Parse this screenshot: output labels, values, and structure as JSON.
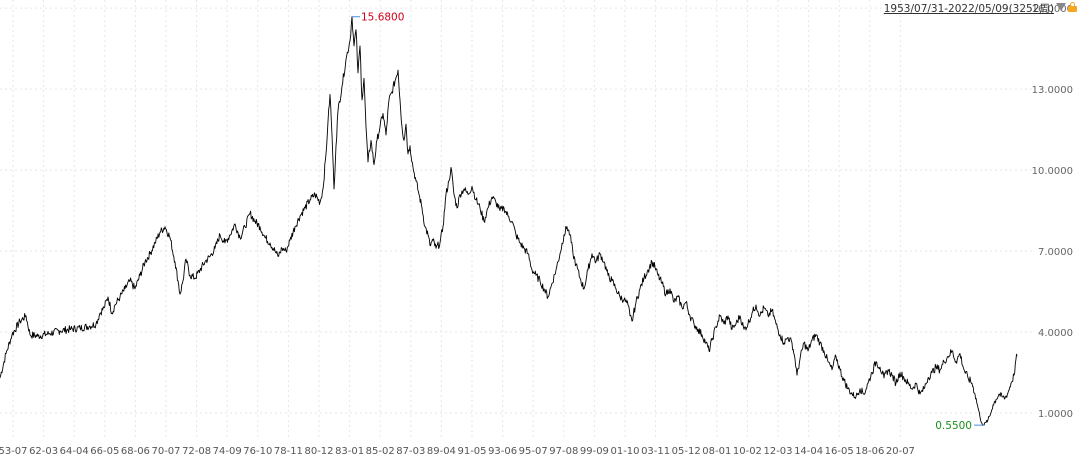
{
  "range_selector": {
    "label": "1953/07/31-2022/05/09(3252周)",
    "caret_icon": "caret-down-icon",
    "lock_icon": "lock-icon"
  },
  "colors": {
    "line": "#000000",
    "max_label": "#d0021b",
    "min_label": "#1a8f1a",
    "grid": "#e6e6e6"
  },
  "chart_data": {
    "type": "line",
    "title": "",
    "xlabel": "",
    "ylabel": "",
    "ylim": [
      0.0,
      16.3
    ],
    "y_ticks": [
      "1.0000",
      "4.0000",
      "7.0000",
      "10.0000",
      "13.0000",
      "16.0000"
    ],
    "x_ticks": [
      "53-07",
      "62-03",
      "64-04",
      "66-05",
      "68-06",
      "70-07",
      "72-08",
      "74-09",
      "76-10",
      "78-11",
      "80-12",
      "83-01",
      "85-02",
      "87-03",
      "89-04",
      "91-05",
      "93-06",
      "95-07",
      "97-08",
      "99-09",
      "01-10",
      "03-11",
      "05-12",
      "08-01",
      "10-02",
      "12-03",
      "14-04",
      "16-05",
      "18-06",
      "20-07"
    ],
    "grid": true,
    "annotations": {
      "max": "15.6800",
      "min": "0.5500"
    },
    "series": [
      {
        "values": [
          [
            0,
            2.3
          ],
          [
            6,
            3.2
          ],
          [
            12,
            3.9
          ],
          [
            20,
            4.4
          ],
          [
            26,
            4.6
          ],
          [
            30,
            3.9
          ],
          [
            38,
            3.85
          ],
          [
            50,
            3.95
          ],
          [
            60,
            4.05
          ],
          [
            70,
            4.1
          ],
          [
            80,
            4.15
          ],
          [
            90,
            4.22
          ],
          [
            96,
            4.3
          ],
          [
            100,
            4.7
          ],
          [
            104,
            4.9
          ],
          [
            108,
            5.3
          ],
          [
            112,
            4.7
          ],
          [
            115,
            5.0
          ],
          [
            120,
            5.3
          ],
          [
            125,
            5.6
          ],
          [
            130,
            5.9
          ],
          [
            135,
            5.6
          ],
          [
            140,
            6.1
          ],
          [
            145,
            6.6
          ],
          [
            150,
            6.9
          ],
          [
            155,
            7.3
          ],
          [
            160,
            7.7
          ],
          [
            165,
            7.9
          ],
          [
            170,
            7.5
          ],
          [
            175,
            6.6
          ],
          [
            178,
            5.9
          ],
          [
            180,
            5.4
          ],
          [
            183,
            5.9
          ],
          [
            186,
            6.7
          ],
          [
            190,
            6.1
          ],
          [
            195,
            6.0
          ],
          [
            200,
            6.3
          ],
          [
            205,
            6.6
          ],
          [
            210,
            6.8
          ],
          [
            215,
            7.1
          ],
          [
            220,
            7.6
          ],
          [
            225,
            7.3
          ],
          [
            230,
            7.6
          ],
          [
            235,
            8.0
          ],
          [
            240,
            7.5
          ],
          [
            245,
            7.9
          ],
          [
            250,
            8.4
          ],
          [
            255,
            8.1
          ],
          [
            260,
            7.9
          ],
          [
            265,
            7.5
          ],
          [
            270,
            7.3
          ],
          [
            275,
            7.0
          ],
          [
            278,
            6.8
          ],
          [
            282,
            7.1
          ],
          [
            286,
            7.0
          ],
          [
            290,
            7.4
          ],
          [
            295,
            7.9
          ],
          [
            300,
            8.3
          ],
          [
            305,
            8.6
          ],
          [
            310,
            8.9
          ],
          [
            315,
            9.1
          ],
          [
            320,
            8.8
          ],
          [
            323,
            9.3
          ],
          [
            326,
            10.6
          ],
          [
            328,
            11.8
          ],
          [
            330,
            12.8
          ],
          [
            332,
            11.3
          ],
          [
            334,
            9.3
          ],
          [
            336,
            10.9
          ],
          [
            338,
            12.2
          ],
          [
            342,
            13.1
          ],
          [
            346,
            14.1
          ],
          [
            350,
            14.8
          ],
          [
            352,
            15.68
          ],
          [
            354,
            14.6
          ],
          [
            356,
            15.2
          ],
          [
            358,
            13.6
          ],
          [
            360,
            14.6
          ],
          [
            362,
            12.6
          ],
          [
            364,
            13.4
          ],
          [
            366,
            11.6
          ],
          [
            368,
            10.3
          ],
          [
            371,
            11.1
          ],
          [
            374,
            10.2
          ],
          [
            377,
            11.1
          ],
          [
            380,
            11.6
          ],
          [
            383,
            12.1
          ],
          [
            386,
            11.3
          ],
          [
            389,
            12.6
          ],
          [
            392,
            12.9
          ],
          [
            395,
            13.3
          ],
          [
            398,
            13.7
          ],
          [
            400,
            12.6
          ],
          [
            402,
            11.6
          ],
          [
            404,
            11.1
          ],
          [
            406,
            11.7
          ],
          [
            408,
            10.6
          ],
          [
            410,
            10.9
          ],
          [
            413,
            10.1
          ],
          [
            416,
            9.6
          ],
          [
            419,
            9.1
          ],
          [
            422,
            8.6
          ],
          [
            425,
            7.9
          ],
          [
            428,
            7.6
          ],
          [
            430,
            7.2
          ],
          [
            433,
            7.4
          ],
          [
            436,
            7.1
          ],
          [
            440,
            7.3
          ],
          [
            443,
            7.9
          ],
          [
            446,
            9.1
          ],
          [
            449,
            9.6
          ],
          [
            451,
            10.1
          ],
          [
            454,
            9.1
          ],
          [
            457,
            8.6
          ],
          [
            460,
            9.1
          ],
          [
            464,
            9.3
          ],
          [
            468,
            9.1
          ],
          [
            472,
            9.4
          ],
          [
            476,
            8.9
          ],
          [
            480,
            8.6
          ],
          [
            484,
            8.1
          ],
          [
            488,
            8.6
          ],
          [
            492,
            9.0
          ],
          [
            496,
            8.8
          ],
          [
            500,
            8.5
          ],
          [
            504,
            8.6
          ],
          [
            508,
            8.3
          ],
          [
            512,
            8.1
          ],
          [
            516,
            7.6
          ],
          [
            520,
            7.3
          ],
          [
            524,
            7.1
          ],
          [
            528,
            6.9
          ],
          [
            532,
            6.3
          ],
          [
            536,
            6.1
          ],
          [
            540,
            5.9
          ],
          [
            544,
            5.6
          ],
          [
            548,
            5.3
          ],
          [
            552,
            5.8
          ],
          [
            556,
            6.3
          ],
          [
            560,
            6.9
          ],
          [
            564,
            7.6
          ],
          [
            567,
            7.9
          ],
          [
            570,
            7.6
          ],
          [
            573,
            6.9
          ],
          [
            576,
            6.5
          ],
          [
            580,
            6.0
          ],
          [
            584,
            5.6
          ],
          [
            588,
            6.3
          ],
          [
            592,
            6.9
          ],
          [
            596,
            6.6
          ],
          [
            600,
            6.9
          ],
          [
            604,
            6.6
          ],
          [
            608,
            6.1
          ],
          [
            612,
            5.9
          ],
          [
            616,
            5.6
          ],
          [
            620,
            5.3
          ],
          [
            624,
            5.2
          ],
          [
            628,
            5.0
          ],
          [
            630,
            4.6
          ],
          [
            632,
            4.4
          ],
          [
            636,
            5.1
          ],
          [
            640,
            5.6
          ],
          [
            644,
            6.0
          ],
          [
            648,
            6.3
          ],
          [
            652,
            6.6
          ],
          [
            655,
            6.4
          ],
          [
            658,
            6.1
          ],
          [
            662,
            5.8
          ],
          [
            666,
            5.4
          ],
          [
            670,
            5.6
          ],
          [
            674,
            5.1
          ],
          [
            678,
            5.3
          ],
          [
            682,
            4.9
          ],
          [
            686,
            5.1
          ],
          [
            690,
            4.6
          ],
          [
            694,
            4.3
          ],
          [
            698,
            4.1
          ],
          [
            702,
            3.9
          ],
          [
            706,
            3.6
          ],
          [
            709,
            3.3
          ],
          [
            712,
            3.7
          ],
          [
            716,
            4.2
          ],
          [
            720,
            4.6
          ],
          [
            724,
            4.3
          ],
          [
            728,
            4.6
          ],
          [
            732,
            4.1
          ],
          [
            736,
            4.3
          ],
          [
            740,
            4.6
          ],
          [
            744,
            4.1
          ],
          [
            748,
            4.3
          ],
          [
            752,
            4.7
          ],
          [
            756,
            5.0
          ],
          [
            760,
            4.6
          ],
          [
            764,
            4.9
          ],
          [
            768,
            4.6
          ],
          [
            772,
            4.8
          ],
          [
            776,
            4.3
          ],
          [
            780,
            3.9
          ],
          [
            784,
            3.6
          ],
          [
            788,
            3.8
          ],
          [
            792,
            3.6
          ],
          [
            795,
            3.0
          ],
          [
            797,
            2.4
          ],
          [
            800,
            3.0
          ],
          [
            804,
            3.6
          ],
          [
            808,
            3.3
          ],
          [
            812,
            3.7
          ],
          [
            816,
            3.9
          ],
          [
            820,
            3.6
          ],
          [
            824,
            3.3
          ],
          [
            828,
            2.9
          ],
          [
            832,
            2.6
          ],
          [
            836,
            3.1
          ],
          [
            840,
            2.6
          ],
          [
            844,
            2.2
          ],
          [
            848,
            1.9
          ],
          [
            852,
            1.7
          ],
          [
            856,
            1.6
          ],
          [
            860,
            1.9
          ],
          [
            864,
            1.7
          ],
          [
            868,
            2.1
          ],
          [
            872,
            2.5
          ],
          [
            876,
            2.9
          ],
          [
            880,
            2.7
          ],
          [
            884,
            2.3
          ],
          [
            888,
            2.6
          ],
          [
            892,
            2.4
          ],
          [
            896,
            2.1
          ],
          [
            900,
            2.5
          ],
          [
            904,
            2.3
          ],
          [
            908,
            2.1
          ],
          [
            912,
            1.9
          ],
          [
            916,
            2.1
          ],
          [
            920,
            1.7
          ],
          [
            924,
            1.9
          ],
          [
            928,
            2.3
          ],
          [
            932,
            2.5
          ],
          [
            936,
            2.7
          ],
          [
            940,
            2.6
          ],
          [
            944,
            2.9
          ],
          [
            948,
            3.1
          ],
          [
            952,
            3.3
          ],
          [
            956,
            2.9
          ],
          [
            960,
            3.2
          ],
          [
            964,
            2.6
          ],
          [
            968,
            2.3
          ],
          [
            972,
            2.1
          ],
          [
            975,
            1.7
          ],
          [
            978,
            1.2
          ],
          [
            980,
            0.85
          ],
          [
            982,
            0.62
          ],
          [
            984,
            0.55
          ],
          [
            986,
            0.65
          ],
          [
            988,
            0.75
          ],
          [
            990,
            0.9
          ],
          [
            993,
            1.3
          ],
          [
            996,
            1.5
          ],
          [
            999,
            1.7
          ],
          [
            1002,
            1.6
          ],
          [
            1005,
            1.55
          ],
          [
            1008,
            1.75
          ],
          [
            1011,
            2.1
          ],
          [
            1014,
            2.4
          ],
          [
            1016,
            3.0
          ],
          [
            1017,
            3.1
          ]
        ]
      }
    ]
  }
}
